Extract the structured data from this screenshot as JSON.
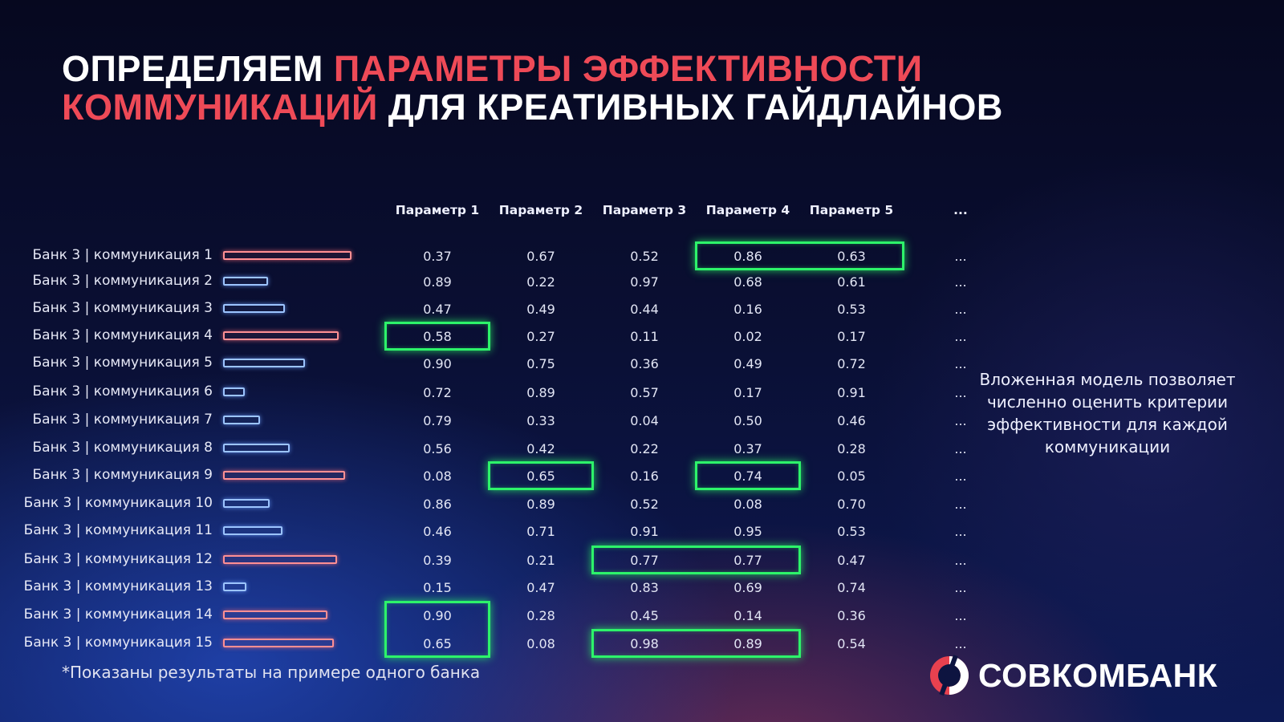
{
  "title": {
    "line1_white": "ОПРЕДЕЛЯЕМ ",
    "line1_red": "ПАРАМЕТРЫ ЭФФЕКТИВНОСТИ",
    "line2_red": "КОММУНИКАЦИЙ",
    "line2_white": " ДЛЯ КРЕАТИВНЫХ ГАЙДЛАЙНОВ"
  },
  "colors": {
    "accent_red": "#ee4a57",
    "highlight_green": "#2df36a",
    "bar_red": "#ff8f93",
    "bar_blue": "#9cc4ff"
  },
  "table": {
    "headers": [
      "Параметр 1",
      "Параметр 2",
      "Параметр 3",
      "Параметр 4",
      "Параметр 5",
      "..."
    ],
    "rows": [
      {
        "label": "Банк 3 | коммуникация 1",
        "bar_value": 1.0,
        "bar_color": "red",
        "values": [
          "0.37",
          "0.67",
          "0.52",
          "0.86",
          "0.63",
          "..."
        ]
      },
      {
        "label": "Банк 3 | коммуникация 2",
        "bar_value": 0.35,
        "bar_color": "blue",
        "values": [
          "0.89",
          "0.22",
          "0.97",
          "0.68",
          "0.61",
          "..."
        ]
      },
      {
        "label": "Банк 3 | коммуникация 3",
        "bar_value": 0.48,
        "bar_color": "blue",
        "values": [
          "0.47",
          "0.49",
          "0.44",
          "0.16",
          "0.53",
          "..."
        ]
      },
      {
        "label": "Банк 3 | коммуникация 4",
        "bar_value": 0.9,
        "bar_color": "red",
        "values": [
          "0.58",
          "0.27",
          "0.11",
          "0.02",
          "0.17",
          "..."
        ]
      },
      {
        "label": "Банк 3 | коммуникация 5",
        "bar_value": 0.64,
        "bar_color": "blue",
        "values": [
          "0.90",
          "0.75",
          "0.36",
          "0.49",
          "0.72",
          "..."
        ]
      },
      {
        "label": "Банк 3 | коммуникация 6",
        "bar_value": 0.17,
        "bar_color": "blue",
        "values": [
          "0.72",
          "0.89",
          "0.57",
          "0.17",
          "0.91",
          "..."
        ]
      },
      {
        "label": "Банк 3 | коммуникация 7",
        "bar_value": 0.29,
        "bar_color": "blue",
        "values": [
          "0.79",
          "0.33",
          "0.04",
          "0.50",
          "0.46",
          "..."
        ]
      },
      {
        "label": "Банк 3 | коммуникация 8",
        "bar_value": 0.52,
        "bar_color": "blue",
        "values": [
          "0.56",
          "0.42",
          "0.22",
          "0.37",
          "0.28",
          "..."
        ]
      },
      {
        "label": "Банк 3 | коммуникация 9",
        "bar_value": 0.95,
        "bar_color": "red",
        "values": [
          "0.08",
          "0.65",
          "0.16",
          "0.74",
          "0.05",
          "..."
        ]
      },
      {
        "label": "Банк 3 | коммуникация 10",
        "bar_value": 0.36,
        "bar_color": "blue",
        "values": [
          "0.86",
          "0.89",
          "0.52",
          "0.08",
          "0.70",
          "..."
        ]
      },
      {
        "label": "Банк 3 | коммуникация 11",
        "bar_value": 0.46,
        "bar_color": "blue",
        "values": [
          "0.46",
          "0.71",
          "0.91",
          "0.95",
          "0.53",
          "..."
        ]
      },
      {
        "label": "Банк 3 | коммуникация 12",
        "bar_value": 0.89,
        "bar_color": "red",
        "values": [
          "0.39",
          "0.21",
          "0.77",
          "0.77",
          "0.47",
          "..."
        ]
      },
      {
        "label": "Банк 3 | коммуникация 13",
        "bar_value": 0.18,
        "bar_color": "blue",
        "values": [
          "0.15",
          "0.47",
          "0.83",
          "0.69",
          "0.74",
          "..."
        ]
      },
      {
        "label": "Банк 3 | коммуникация 14",
        "bar_value": 0.81,
        "bar_color": "red",
        "values": [
          "0.90",
          "0.28",
          "0.45",
          "0.14",
          "0.36",
          "..."
        ]
      },
      {
        "label": "Банк 3 | коммуникация 15",
        "bar_value": 0.86,
        "bar_color": "red",
        "values": [
          "0.65",
          "0.08",
          "0.98",
          "0.89",
          "0.54",
          "..."
        ]
      }
    ],
    "highlights": [
      {
        "row_start": 0,
        "row_end": 0,
        "col_start": 3,
        "col_end": 4
      },
      {
        "row_start": 3,
        "row_end": 3,
        "col_start": 0,
        "col_end": 0
      },
      {
        "row_start": 8,
        "row_end": 8,
        "col_start": 1,
        "col_end": 1
      },
      {
        "row_start": 8,
        "row_end": 8,
        "col_start": 3,
        "col_end": 3
      },
      {
        "row_start": 11,
        "row_end": 11,
        "col_start": 2,
        "col_end": 3
      },
      {
        "row_start": 13,
        "row_end": 14,
        "col_start": 0,
        "col_end": 0
      },
      {
        "row_start": 14,
        "row_end": 14,
        "col_start": 2,
        "col_end": 3
      }
    ]
  },
  "side_note": "Вложенная модель позволяет численно оценить критерии эффективности для каждой коммуникации",
  "footnote": "*Показаны результаты на примере одного банка",
  "logo": {
    "text": "СОВКОМБАНК",
    "icon": "sovcombank-logo-icon"
  }
}
